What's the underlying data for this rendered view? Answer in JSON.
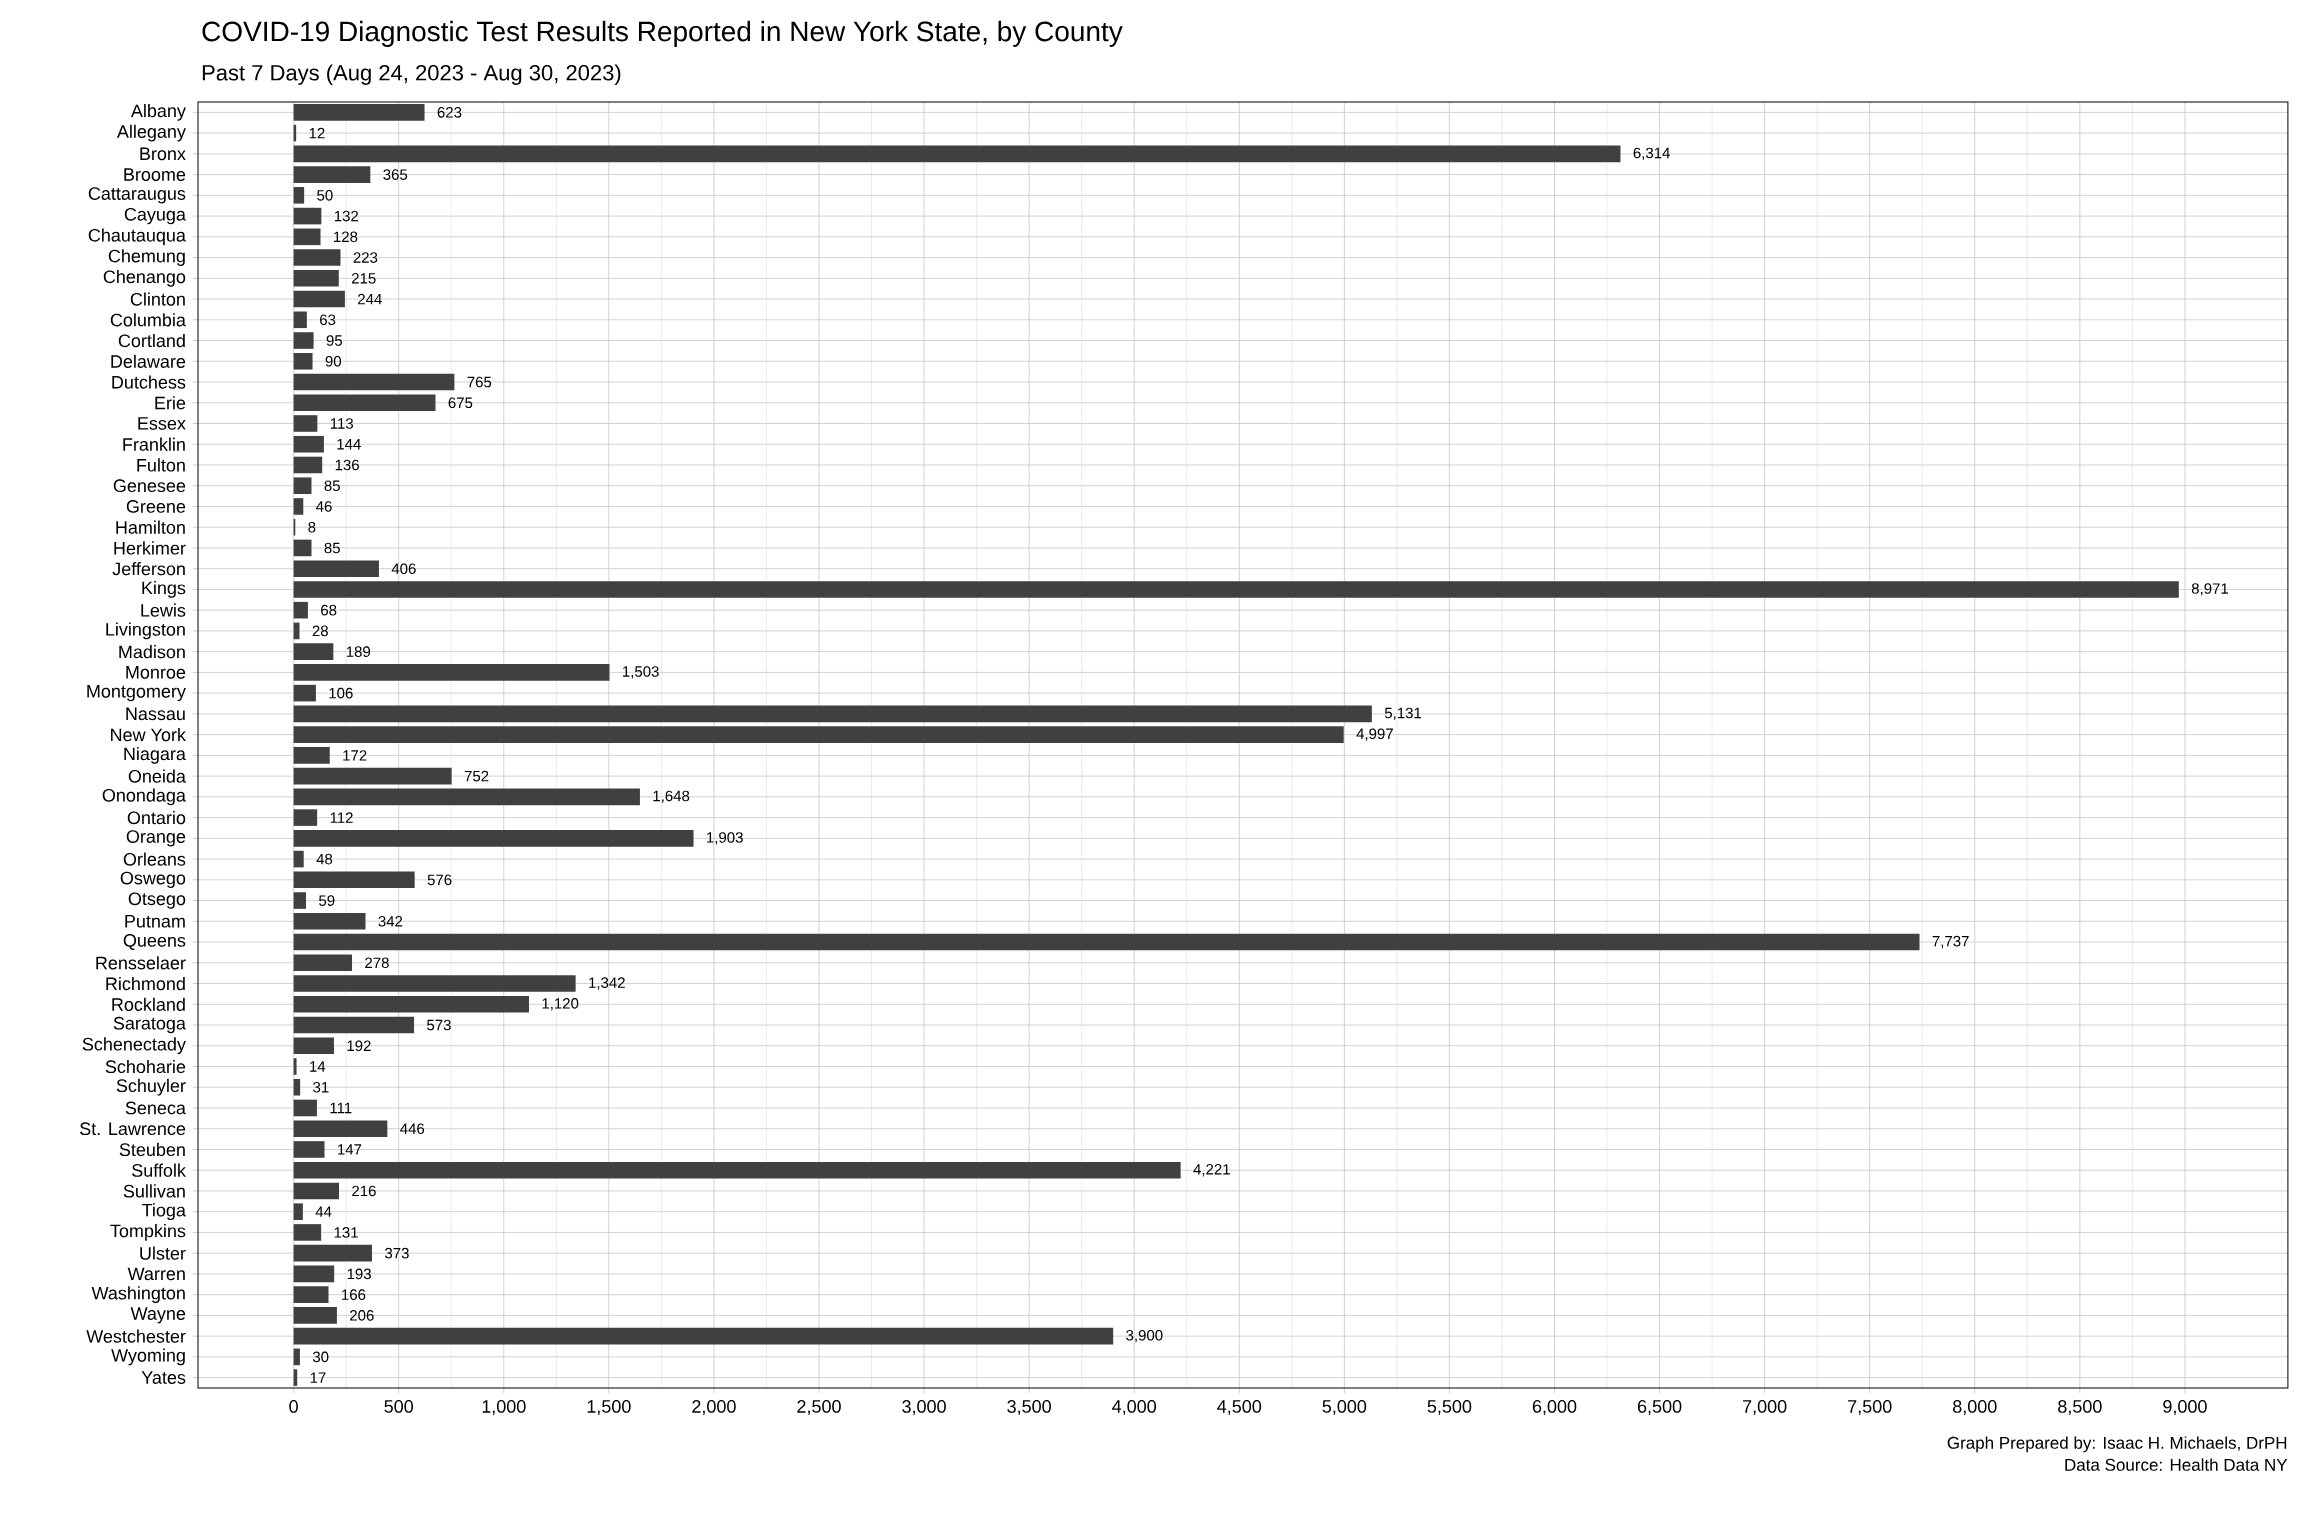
{
  "chart_data": {
    "type": "bar",
    "orientation": "horizontal",
    "title": "COVID-19 Diagnostic Test Results Reported in New York State, by County",
    "subtitle": "Past 7 Days (Aug 24, 2023 - Aug 30, 2023)",
    "categories": [
      "Albany",
      "Allegany",
      "Bronx",
      "Broome",
      "Cattaraugus",
      "Cayuga",
      "Chautauqua",
      "Chemung",
      "Chenango",
      "Clinton",
      "Columbia",
      "Cortland",
      "Delaware",
      "Dutchess",
      "Erie",
      "Essex",
      "Franklin",
      "Fulton",
      "Genesee",
      "Greene",
      "Hamilton",
      "Herkimer",
      "Jefferson",
      "Kings",
      "Lewis",
      "Livingston",
      "Madison",
      "Monroe",
      "Montgomery",
      "Nassau",
      "New York",
      "Niagara",
      "Oneida",
      "Onondaga",
      "Ontario",
      "Orange",
      "Orleans",
      "Oswego",
      "Otsego",
      "Putnam",
      "Queens",
      "Rensselaer",
      "Richmond",
      "Rockland",
      "Saratoga",
      "Schenectady",
      "Schoharie",
      "Schuyler",
      "Seneca",
      "St. Lawrence",
      "Steuben",
      "Suffolk",
      "Sullivan",
      "Tioga",
      "Tompkins",
      "Ulster",
      "Warren",
      "Washington",
      "Wayne",
      "Westchester",
      "Wyoming",
      "Yates"
    ],
    "values": [
      623,
      12,
      6314,
      365,
      50,
      132,
      128,
      223,
      215,
      244,
      63,
      95,
      90,
      765,
      675,
      113,
      144,
      136,
      85,
      46,
      8,
      85,
      406,
      8971,
      68,
      28,
      189,
      1503,
      106,
      5131,
      4997,
      172,
      752,
      1648,
      112,
      1903,
      48,
      576,
      59,
      342,
      7737,
      278,
      1342,
      1120,
      573,
      192,
      14,
      31,
      111,
      446,
      147,
      4221,
      216,
      44,
      131,
      373,
      193,
      166,
      206,
      3900,
      30,
      17
    ],
    "value_labels": [
      "623",
      "12",
      "6,314",
      "365",
      "50",
      "132",
      "128",
      "223",
      "215",
      "244",
      "63",
      "95",
      "90",
      "765",
      "675",
      "113",
      "144",
      "136",
      "85",
      "46",
      "8",
      "85",
      "406",
      "8,971",
      "68",
      "28",
      "189",
      "1,503",
      "106",
      "5,131",
      "4,997",
      "172",
      "752",
      "1,648",
      "112",
      "1,903",
      "48",
      "576",
      "59",
      "342",
      "7,737",
      "278",
      "1,342",
      "1,120",
      "573",
      "192",
      "14",
      "31",
      "111",
      "446",
      "147",
      "4,221",
      "216",
      "44",
      "131",
      "373",
      "193",
      "166",
      "206",
      "3,900",
      "30",
      "17"
    ],
    "color": "#404040",
    "grid": true,
    "xlim": [
      -455,
      9490
    ],
    "xticks": [
      0,
      500,
      {
        "value": 1000,
        "label": "1,000"
      },
      {
        "value": 1500,
        "label": "1,500"
      },
      {
        "value": 2000,
        "label": "2,000"
      },
      {
        "value": 2500,
        "label": "2,500"
      },
      {
        "value": 3000,
        "label": "3,000"
      },
      {
        "value": 3500,
        "label": "3,500"
      },
      {
        "value": 4000,
        "label": "4,000"
      },
      {
        "value": 4500,
        "label": "4,500"
      },
      {
        "value": 5000,
        "label": "5,000"
      },
      {
        "value": 5500,
        "label": "5,500"
      },
      {
        "value": 6000,
        "label": "6,000"
      },
      {
        "value": 6500,
        "label": "6,500"
      },
      {
        "value": 7000,
        "label": "7,000"
      },
      {
        "value": 7500,
        "label": "7,500"
      },
      {
        "value": 8000,
        "label": "8,000"
      },
      {
        "value": 8500,
        "label": "8,500"
      },
      {
        "value": 9000,
        "label": "9,000"
      }
    ],
    "annotations": [
      "Graph Prepared by: Isaac H. Michaels, DrPH",
      "Data Source: Health Data NY"
    ]
  }
}
